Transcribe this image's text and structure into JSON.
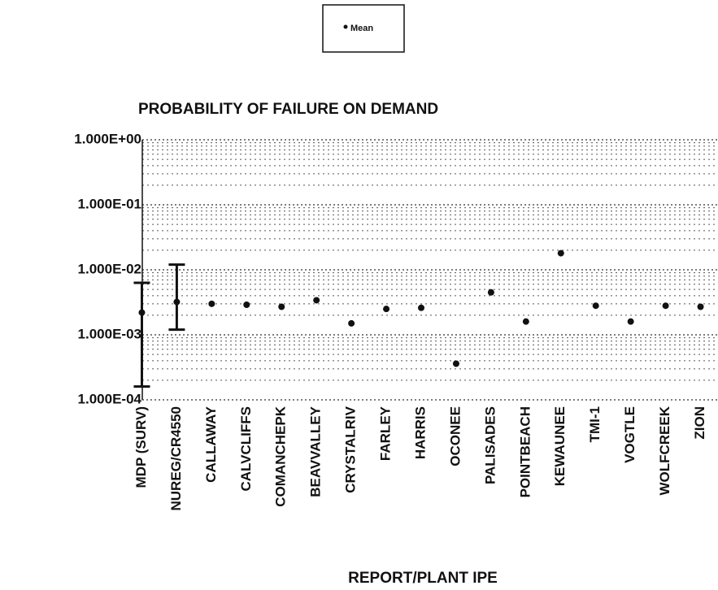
{
  "chart_data": {
    "type": "scatter",
    "title": "PROBABILITY OF FAILURE ON DEMAND",
    "x_label": "REPORT/PLANT IPE",
    "categories": [
      "MDP (SURV)",
      "NUREG/CR4550",
      "CALLAWAY",
      "CALVCLIFFS",
      "COMANCHEPK",
      "BEAVVALLEY",
      "CRYSTALRIV",
      "FARLEY",
      "HARRIS",
      "OCONEE",
      "PALISADES",
      "POINTBEACH",
      "KEWAUNEE",
      "TMI-1",
      "VOGTLE",
      "WOLFCREEK",
      "ZION"
    ],
    "series": [
      {
        "name": "Mean",
        "color": "#111111",
        "values": [
          0.0022,
          0.0032,
          0.003,
          0.0029,
          0.0027,
          0.0034,
          0.0015,
          0.0025,
          0.0026,
          0.00036,
          0.0045,
          0.0016,
          0.018,
          0.0028,
          0.0016,
          0.0028,
          0.0027
        ],
        "error_low": [
          0.00016,
          0.0012,
          null,
          null,
          null,
          null,
          null,
          null,
          null,
          null,
          null,
          null,
          null,
          null,
          null,
          null,
          null
        ],
        "error_high": [
          0.0063,
          0.012,
          null,
          null,
          null,
          null,
          null,
          null,
          null,
          null,
          null,
          null,
          null,
          null,
          null,
          null,
          null
        ]
      }
    ],
    "log_scale": true,
    "ylim": [
      0.0001,
      1
    ],
    "yticks": [
      {
        "value": 0.0001,
        "label": "1.000E-04"
      },
      {
        "value": 0.001,
        "label": "1.000E-03"
      },
      {
        "value": 0.01,
        "label": "1.000E-02"
      },
      {
        "value": 0.1,
        "label": "1.000E-01"
      },
      {
        "value": 1,
        "label": "1.000E+00"
      }
    ],
    "grid": true
  }
}
